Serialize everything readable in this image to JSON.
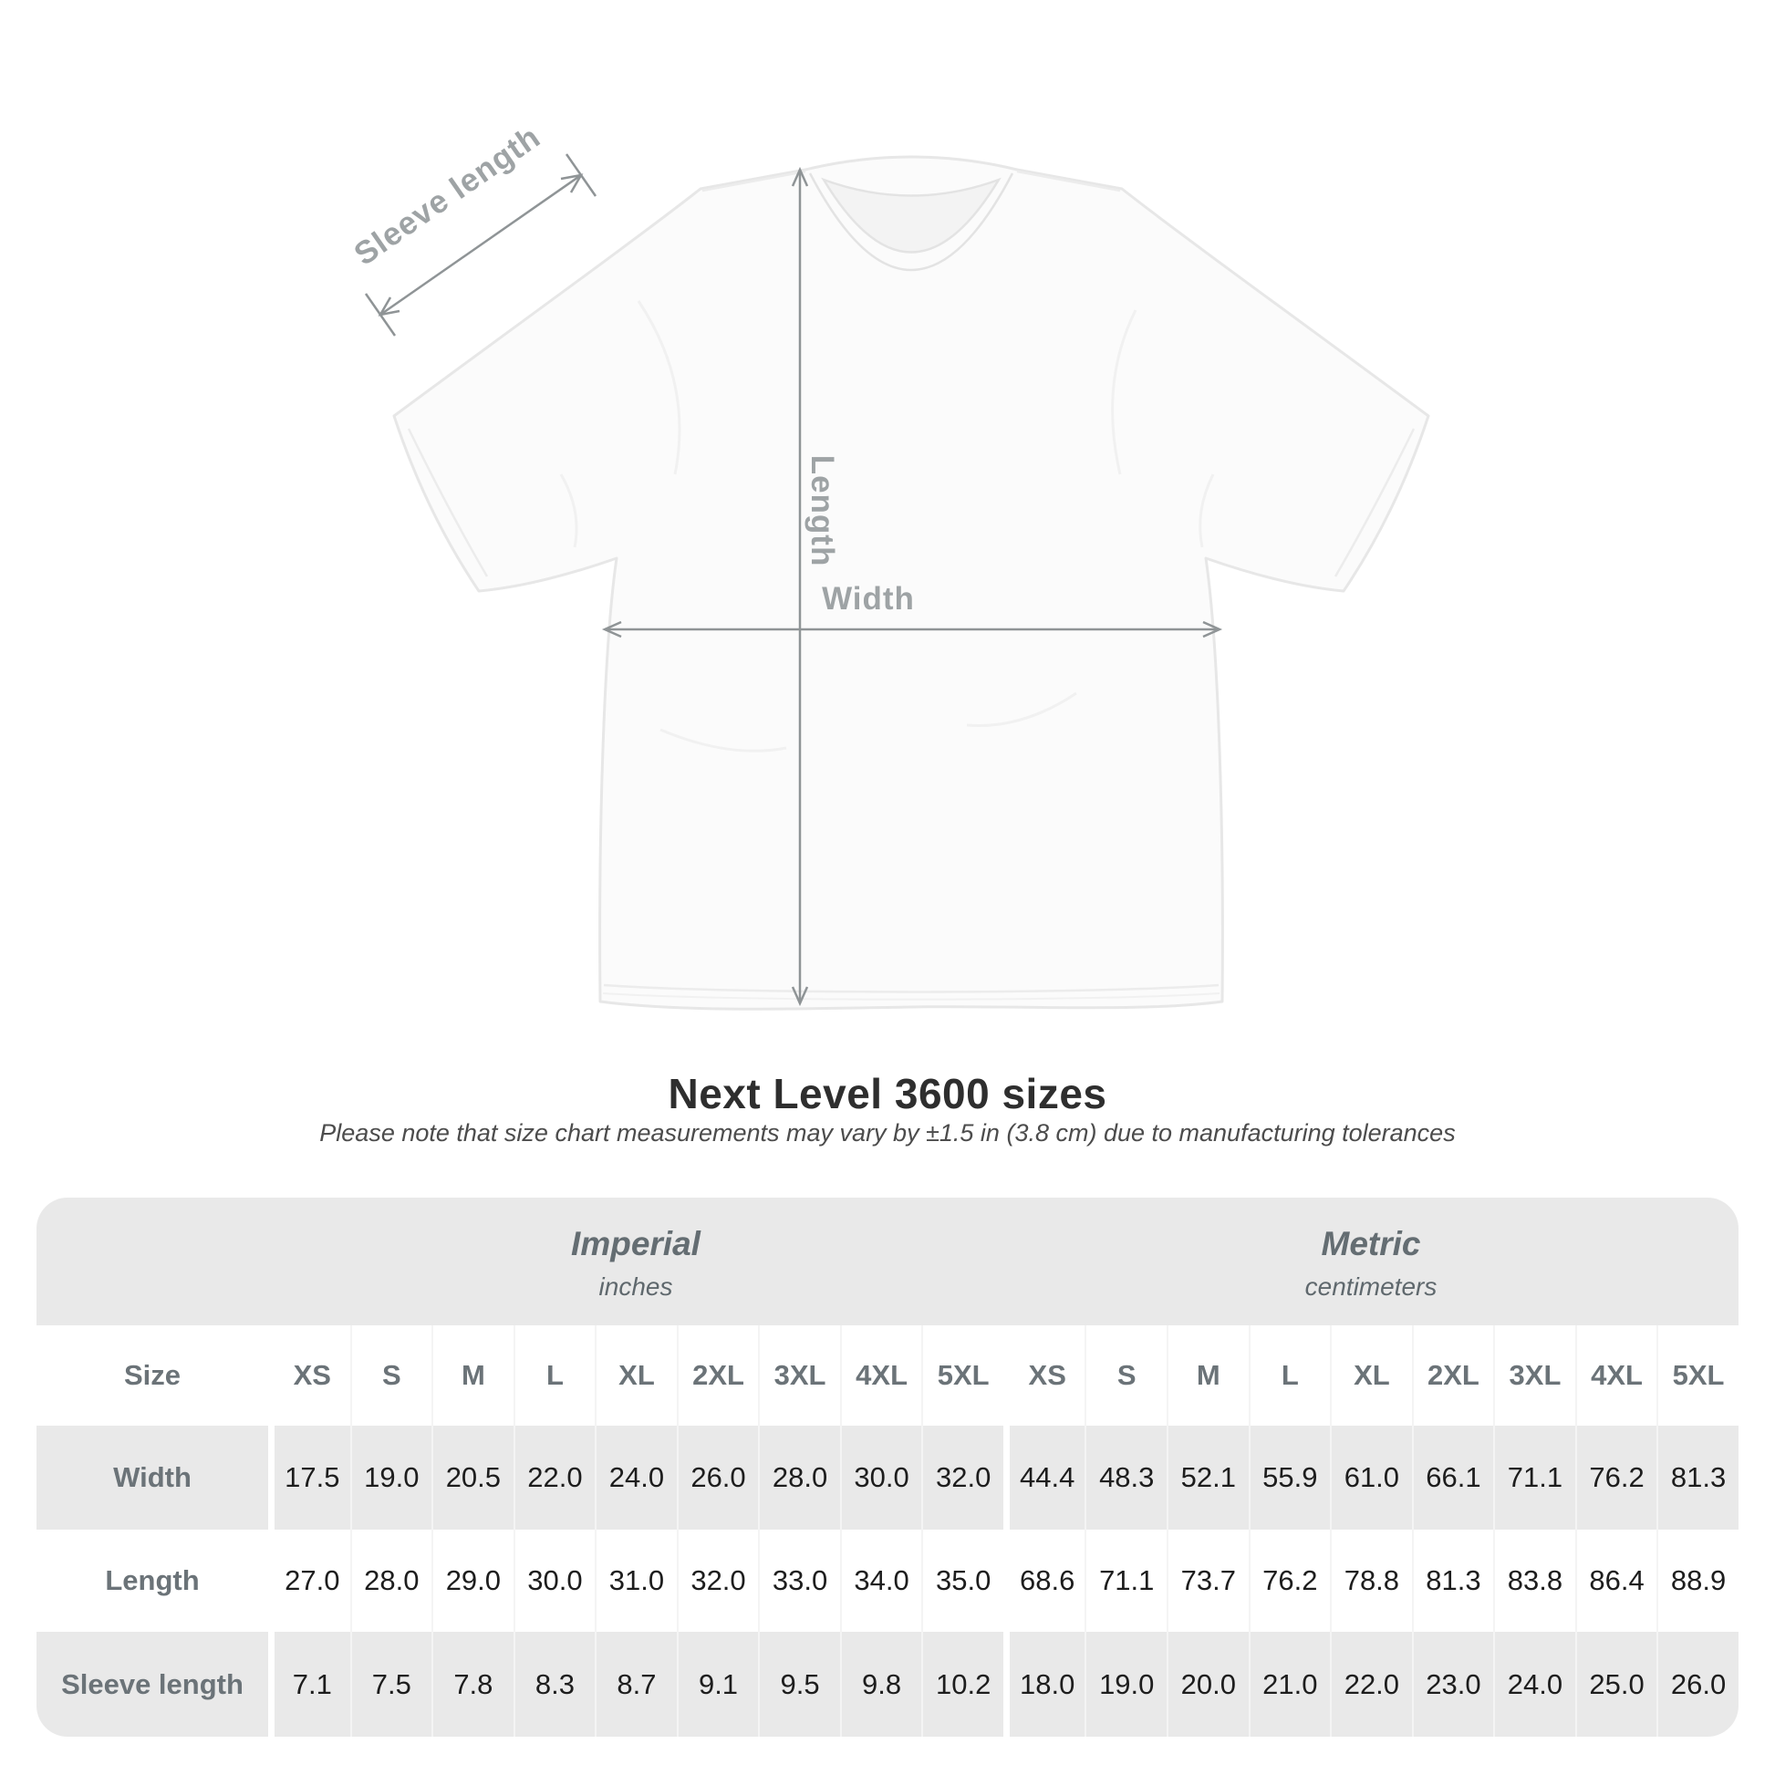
{
  "title": "Next Level 3600 sizes",
  "subtitle": "Please note that size chart measurements may vary by ±1.5 in (3.8 cm) due to manufacturing tolerances",
  "figure": {
    "sleeve_label": "Sleeve length",
    "length_label": "Length",
    "width_label": "Width"
  },
  "table": {
    "unit_groups": [
      {
        "name": "Imperial",
        "sub": "inches"
      },
      {
        "name": "Metric",
        "sub": "centimeters"
      }
    ],
    "size_label": "Size",
    "sizes": [
      "XS",
      "S",
      "M",
      "L",
      "XL",
      "2XL",
      "3XL",
      "4XL",
      "5XL"
    ],
    "rows": [
      {
        "label": "Width",
        "imperial": [
          "17.5",
          "19.0",
          "20.5",
          "22.0",
          "24.0",
          "26.0",
          "28.0",
          "30.0",
          "32.0"
        ],
        "metric": [
          "44.4",
          "48.3",
          "52.1",
          "55.9",
          "61.0",
          "66.1",
          "71.1",
          "76.2",
          "81.3"
        ]
      },
      {
        "label": "Length",
        "imperial": [
          "27.0",
          "28.0",
          "29.0",
          "30.0",
          "31.0",
          "32.0",
          "33.0",
          "34.0",
          "35.0"
        ],
        "metric": [
          "68.6",
          "71.1",
          "73.7",
          "76.2",
          "78.8",
          "81.3",
          "83.8",
          "86.4",
          "88.9"
        ]
      },
      {
        "label": "Sleeve length",
        "imperial": [
          "7.1",
          "7.5",
          "7.8",
          "8.3",
          "8.7",
          "9.1",
          "9.5",
          "9.8",
          "10.2"
        ],
        "metric": [
          "18.0",
          "19.0",
          "20.0",
          "21.0",
          "22.0",
          "23.0",
          "24.0",
          "25.0",
          "26.0"
        ]
      }
    ]
  },
  "chart_data": {
    "type": "table",
    "title": "Next Level 3600 sizes",
    "column_groups": [
      "Imperial (inches)",
      "Metric (centimeters)"
    ],
    "sizes": [
      "XS",
      "S",
      "M",
      "L",
      "XL",
      "2XL",
      "3XL",
      "4XL",
      "5XL"
    ],
    "rows": [
      {
        "measurement": "Width",
        "imperial_in": [
          17.5,
          19.0,
          20.5,
          22.0,
          24.0,
          26.0,
          28.0,
          30.0,
          32.0
        ],
        "metric_cm": [
          44.4,
          48.3,
          52.1,
          55.9,
          61.0,
          66.1,
          71.1,
          76.2,
          81.3
        ]
      },
      {
        "measurement": "Length",
        "imperial_in": [
          27.0,
          28.0,
          29.0,
          30.0,
          31.0,
          32.0,
          33.0,
          34.0,
          35.0
        ],
        "metric_cm": [
          68.6,
          71.1,
          73.7,
          76.2,
          78.8,
          81.3,
          83.8,
          86.4,
          88.9
        ]
      },
      {
        "measurement": "Sleeve length",
        "imperial_in": [
          7.1,
          7.5,
          7.8,
          8.3,
          8.7,
          9.1,
          9.5,
          9.8,
          10.2
        ],
        "metric_cm": [
          18.0,
          19.0,
          20.0,
          21.0,
          22.0,
          23.0,
          24.0,
          25.0,
          26.0
        ]
      }
    ]
  },
  "colors": {
    "row_gray": "#e9e9e9",
    "header_text_gray": "#6b7378",
    "value_text": "#1d1d1d",
    "arrow_gray": "#8f9496",
    "figure_label_gray": "#9ea3a5",
    "title_text": "#2e2e2e"
  }
}
